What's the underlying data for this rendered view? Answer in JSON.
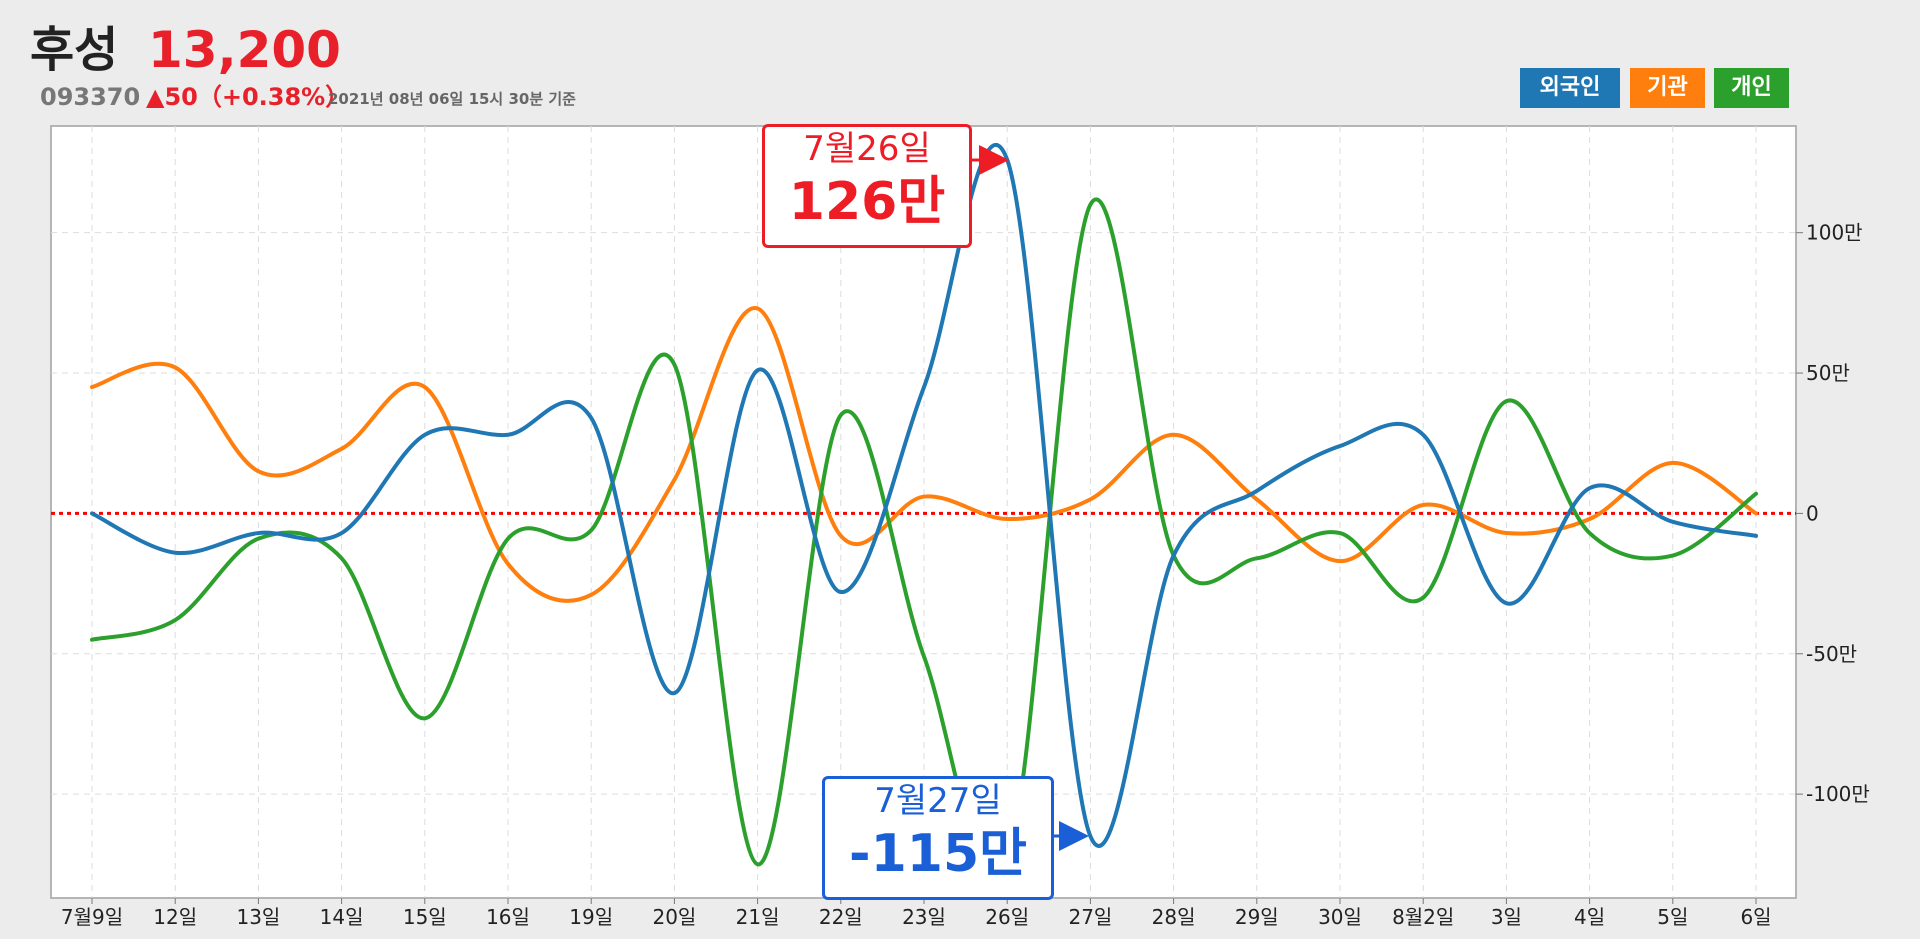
{
  "header": {
    "stock_name": "후성",
    "price": "13,200",
    "code": "093370",
    "change": "▲50（+0.38%）",
    "as_of": "2021년 08년 06일 15시 30분 기준"
  },
  "legend": [
    {
      "label": "외국인",
      "color": "#1f77b4"
    },
    {
      "label": "기관",
      "color": "#ff7f0e"
    },
    {
      "label": "개인",
      "color": "#2ca02c"
    }
  ],
  "callouts": {
    "max": {
      "date": "7월26일",
      "value": "126만",
      "color": "#ee1c25"
    },
    "min": {
      "date": "7월27일",
      "value": "-115만",
      "color": "#1a5fd6"
    }
  },
  "chart_data": {
    "type": "line",
    "categories": [
      "7월9일",
      "12일",
      "13일",
      "14일",
      "15일",
      "16일",
      "19일",
      "20일",
      "21일",
      "22일",
      "23일",
      "26일",
      "27일",
      "28일",
      "29일",
      "30일",
      "8월2일",
      "3일",
      "4일",
      "5일",
      "6일"
    ],
    "y_axis_position": "right",
    "y_ticks": [
      100,
      50,
      0,
      -50,
      -100
    ],
    "y_tick_labels": [
      "100만",
      "50만",
      "0",
      "-50만",
      "-100만"
    ],
    "ylim": [
      -137,
      138
    ],
    "zero_line": {
      "value": 0,
      "color": "#ff0000",
      "style": "dotted"
    },
    "grid": true,
    "series": [
      {
        "name": "외국인",
        "color": "#1f77b4",
        "values": [
          0,
          -14,
          -7,
          -7,
          28,
          28,
          34,
          -64,
          51,
          -28,
          45,
          126,
          -115,
          -15,
          8,
          24,
          28,
          -32,
          9,
          -3,
          -8
        ]
      },
      {
        "name": "기관",
        "color": "#ff7f0e",
        "values": [
          45,
          52,
          15,
          23,
          45,
          -18,
          -29,
          12,
          73,
          -8,
          6,
          -2,
          5,
          28,
          5,
          -17,
          3,
          -7,
          -2,
          18,
          0
        ]
      },
      {
        "name": "개인",
        "color": "#2ca02c",
        "values": [
          -45,
          -38,
          -9,
          -16,
          -73,
          -9,
          -6,
          53,
          -125,
          35,
          -51,
          -125,
          110,
          -15,
          -16,
          -7,
          -30,
          40,
          -7,
          -15,
          7
        ]
      }
    ]
  }
}
